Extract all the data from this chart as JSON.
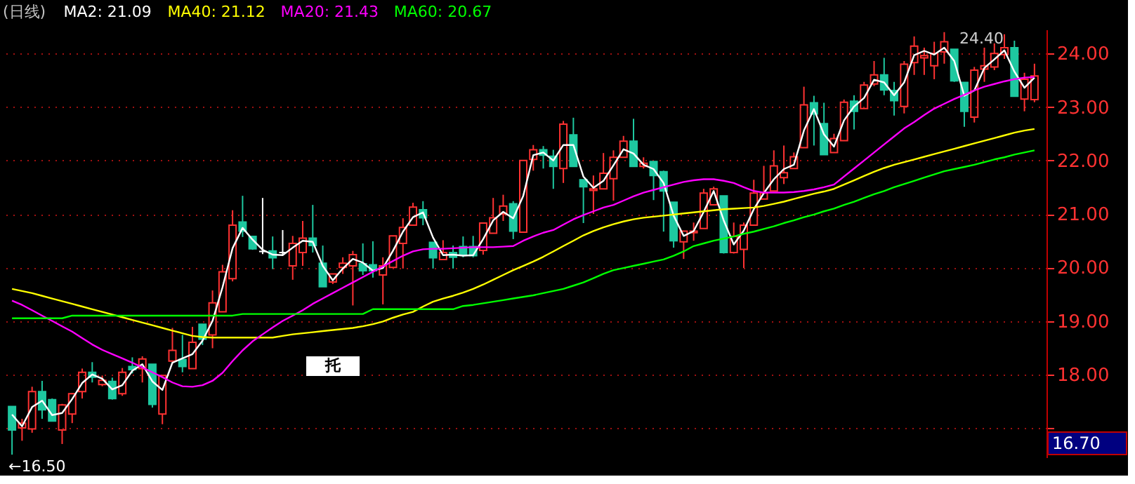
{
  "chart_data": {
    "type": "candlestick",
    "title": "(日线)",
    "categories": [
      null,
      null,
      null,
      null,
      null,
      null,
      null,
      null,
      null,
      null,
      null,
      null,
      null,
      null,
      null,
      null,
      null,
      null,
      null,
      null,
      null,
      null,
      null,
      null,
      null,
      null,
      null,
      null,
      null,
      null,
      null,
      null,
      null,
      null,
      null,
      null,
      null,
      null,
      null,
      null,
      null,
      null,
      null,
      null,
      null,
      null,
      null,
      null,
      null,
      null,
      null,
      null,
      null,
      null,
      null,
      null,
      null,
      null,
      null,
      null,
      null,
      null,
      null,
      null,
      null,
      null,
      null,
      null,
      null,
      null,
      null,
      null,
      null,
      null,
      null,
      null,
      null,
      null,
      null,
      null,
      null,
      null,
      null,
      null,
      null,
      null,
      null,
      null,
      null,
      null,
      null,
      null,
      null,
      null,
      null,
      null,
      null,
      null,
      null,
      null,
      null,
      null,
      null
    ],
    "ohlc": [
      [
        17.4,
        17.4,
        16.5,
        16.96
      ],
      [
        17.0,
        17.17,
        16.76,
        17.09
      ],
      [
        16.98,
        17.77,
        16.91,
        17.68
      ],
      [
        17.68,
        17.88,
        17.17,
        17.34
      ],
      [
        17.53,
        17.55,
        17.12,
        17.13
      ],
      [
        16.96,
        17.45,
        16.7,
        17.43
      ],
      [
        17.26,
        17.65,
        17.09,
        17.64
      ],
      [
        17.68,
        18.11,
        17.55,
        18.04
      ],
      [
        18.04,
        18.23,
        17.85,
        17.95
      ],
      [
        17.81,
        17.98,
        17.78,
        17.89
      ],
      [
        17.87,
        17.94,
        17.53,
        17.55
      ],
      [
        17.64,
        18.12,
        17.6,
        18.04
      ],
      [
        18.15,
        18.32,
        18.02,
        18.09
      ],
      [
        18.11,
        18.34,
        17.85,
        18.29
      ],
      [
        18.19,
        18.19,
        17.38,
        17.44
      ],
      [
        17.26,
        17.98,
        17.07,
        17.98
      ],
      [
        18.25,
        18.87,
        18.25,
        18.45
      ],
      [
        18.28,
        18.74,
        18.04,
        18.15
      ],
      [
        18.11,
        18.89,
        18.11,
        18.6
      ],
      [
        18.94,
        18.94,
        18.55,
        18.66
      ],
      [
        18.74,
        19.57,
        18.49,
        19.34
      ],
      [
        19.17,
        20.05,
        19.17,
        19.92
      ],
      [
        19.79,
        21.07,
        19.74,
        20.79
      ],
      [
        20.85,
        21.34,
        20.57,
        20.68
      ],
      [
        20.58,
        20.58,
        20.33,
        20.35
      ],
      [
        20.3,
        21.3,
        20.25,
        20.3
      ],
      [
        20.31,
        20.58,
        19.97,
        20.18
      ],
      [
        20.28,
        20.7,
        20.24,
        20.28
      ],
      [
        20.03,
        20.59,
        19.77,
        20.45
      ],
      [
        20.28,
        20.87,
        20.03,
        20.55
      ],
      [
        20.55,
        21.17,
        20.28,
        20.41
      ],
      [
        20.08,
        20.41,
        19.64,
        19.64
      ],
      [
        19.73,
        19.88,
        19.69,
        19.88
      ],
      [
        20.0,
        20.19,
        19.88,
        20.08
      ],
      [
        20.03,
        20.31,
        19.29,
        20.24
      ],
      [
        20.07,
        20.45,
        19.86,
        19.94
      ],
      [
        20.05,
        20.49,
        19.81,
        19.94
      ],
      [
        19.86,
        20.19,
        19.31,
        20.03
      ],
      [
        20.0,
        20.59,
        20.0,
        20.59
      ],
      [
        20.45,
        20.92,
        19.98,
        20.75
      ],
      [
        20.79,
        21.21,
        20.79,
        21.13
      ],
      [
        21.08,
        21.24,
        20.79,
        20.93
      ],
      [
        20.47,
        20.47,
        19.98,
        20.18
      ],
      [
        20.15,
        20.51,
        20.15,
        20.28
      ],
      [
        20.28,
        20.41,
        19.98,
        20.19
      ],
      [
        20.39,
        20.58,
        20.19,
        20.24
      ],
      [
        20.39,
        20.59,
        20.19,
        20.22
      ],
      [
        20.32,
        20.83,
        20.24,
        20.83
      ],
      [
        20.64,
        21.3,
        20.64,
        20.93
      ],
      [
        21.0,
        21.36,
        20.87,
        21.15
      ],
      [
        21.19,
        21.24,
        20.53,
        20.68
      ],
      [
        20.66,
        22.0,
        20.66,
        22.0
      ],
      [
        22.02,
        22.29,
        21.81,
        22.2
      ],
      [
        22.2,
        22.27,
        21.85,
        22.1
      ],
      [
        22.08,
        22.2,
        21.47,
        21.89
      ],
      [
        21.85,
        22.74,
        21.58,
        22.68
      ],
      [
        22.48,
        22.8,
        21.89,
        21.89
      ],
      [
        21.64,
        21.64,
        20.83,
        21.51
      ],
      [
        21.44,
        21.72,
        21.0,
        21.47
      ],
      [
        21.47,
        22.14,
        21.47,
        21.76
      ],
      [
        21.66,
        22.19,
        21.25,
        22.06
      ],
      [
        22.06,
        22.46,
        22.06,
        22.36
      ],
      [
        22.36,
        22.78,
        21.89,
        21.89
      ],
      [
        21.89,
        22.06,
        21.85,
        21.95
      ],
      [
        21.98,
        21.98,
        21.26,
        21.72
      ],
      [
        21.79,
        21.81,
        20.67,
        21.43
      ],
      [
        21.22,
        21.22,
        20.37,
        20.5
      ],
      [
        20.48,
        20.68,
        20.16,
        20.68
      ],
      [
        20.65,
        20.84,
        20.5,
        20.68
      ],
      [
        20.73,
        21.47,
        20.73,
        21.39
      ],
      [
        21.17,
        21.51,
        21.16,
        21.47
      ],
      [
        21.34,
        21.34,
        20.26,
        20.28
      ],
      [
        20.28,
        20.84,
        20.26,
        20.58
      ],
      [
        20.34,
        20.84,
        19.99,
        20.79
      ],
      [
        20.79,
        21.64,
        20.79,
        21.39
      ],
      [
        21.28,
        21.9,
        21.28,
        21.39
      ],
      [
        21.43,
        22.19,
        21.43,
        21.9
      ],
      [
        21.68,
        22.28,
        21.56,
        21.77
      ],
      [
        21.85,
        22.15,
        21.85,
        22.07
      ],
      [
        22.24,
        23.38,
        22.24,
        23.04
      ],
      [
        23.08,
        23.21,
        22.28,
        22.87
      ],
      [
        22.69,
        23.08,
        22.11,
        22.11
      ],
      [
        22.15,
        22.5,
        22.15,
        22.41
      ],
      [
        22.37,
        23.14,
        22.37,
        23.09
      ],
      [
        23.11,
        23.22,
        22.58,
        22.92
      ],
      [
        22.97,
        23.47,
        22.97,
        23.41
      ],
      [
        23.43,
        23.86,
        23.39,
        23.6
      ],
      [
        23.6,
        23.92,
        23.22,
        23.32
      ],
      [
        23.31,
        23.47,
        22.84,
        23.12
      ],
      [
        23.01,
        23.86,
        22.88,
        23.8
      ],
      [
        23.83,
        24.32,
        23.6,
        24.14
      ],
      [
        23.92,
        24.11,
        23.6,
        23.96
      ],
      [
        23.77,
        24.22,
        23.52,
        24.0
      ],
      [
        24.03,
        24.4,
        23.81,
        24.22
      ],
      [
        24.08,
        24.08,
        23.47,
        23.49
      ],
      [
        23.46,
        23.46,
        22.63,
        22.92
      ],
      [
        22.81,
        23.75,
        22.71,
        23.69
      ],
      [
        23.71,
        24.11,
        23.47,
        23.77
      ],
      [
        23.75,
        24.19,
        23.69,
        24.0
      ],
      [
        23.98,
        24.36,
        23.9,
        24.11
      ],
      [
        24.11,
        24.24,
        23.2,
        23.2
      ],
      [
        23.15,
        23.64,
        22.92,
        23.52
      ],
      [
        23.14,
        23.81,
        23.09,
        23.58
      ]
    ],
    "colors": [
      "#1ec8a0",
      "#ff3232",
      "#ff3232",
      "#1ec8a0",
      "#1ec8a0",
      "#ff3232",
      "#ff3232",
      "#ff3232",
      "#1ec8a0",
      "#ff3232",
      "#1ec8a0",
      "#ff3232",
      "#1ec8a0",
      "#ff3232",
      "#1ec8a0",
      "#ff3232",
      "#ff3232",
      "#1ec8a0",
      "#ff3232",
      "#1ec8a0",
      "#ff3232",
      "#ff3232",
      "#ff3232",
      "#1ec8a0",
      "#1ec8a0",
      "#ffffff",
      "#1ec8a0",
      "#ffffff",
      "#ff3232",
      "#ff3232",
      "#1ec8a0",
      "#1ec8a0",
      "#ff3232",
      "#ff3232",
      "#ff3232",
      "#1ec8a0",
      "#1ec8a0",
      "#ff3232",
      "#ff3232",
      "#ff3232",
      "#ff3232",
      "#1ec8a0",
      "#1ec8a0",
      "#ff3232",
      "#1ec8a0",
      "#1ec8a0",
      "#1ec8a0",
      "#ff3232",
      "#ff3232",
      "#ff3232",
      "#1ec8a0",
      "#ff3232",
      "#ff3232",
      "#1ec8a0",
      "#1ec8a0",
      "#ff3232",
      "#1ec8a0",
      "#1ec8a0",
      "#ff3232",
      "#ff3232",
      "#ff3232",
      "#ff3232",
      "#1ec8a0",
      "#ff3232",
      "#1ec8a0",
      "#1ec8a0",
      "#1ec8a0",
      "#ff3232",
      "#ff3232",
      "#ff3232",
      "#ff3232",
      "#1ec8a0",
      "#ff3232",
      "#ff3232",
      "#ff3232",
      "#ff3232",
      "#ff3232",
      "#ff3232",
      "#ff3232",
      "#ff3232",
      "#1ec8a0",
      "#1ec8a0",
      "#ff3232",
      "#ff3232",
      "#1ec8a0",
      "#ff3232",
      "#ff3232",
      "#1ec8a0",
      "#1ec8a0",
      "#ff3232",
      "#ff3232",
      "#ff3232",
      "#ff3232",
      "#ff3232",
      "#1ec8a0",
      "#1ec8a0",
      "#ff3232",
      "#ff3232",
      "#ff3232",
      "#ff3232",
      "#1ec8a0",
      "#ff3232",
      "#ff3232"
    ],
    "series": [
      {
        "name": "MA2: 21.09",
        "type": "line",
        "color": "#ffffff",
        "values": [
          17.25,
          17.03,
          17.39,
          17.51,
          17.24,
          17.28,
          17.54,
          17.84,
          18.0,
          17.92,
          17.72,
          17.8,
          18.07,
          18.19,
          17.87,
          17.71,
          18.22,
          18.3,
          18.38,
          18.63,
          19.0,
          19.63,
          20.36,
          20.74,
          20.52,
          20.33,
          20.24,
          20.23,
          20.37,
          20.5,
          20.48,
          20.03,
          19.76,
          19.98,
          20.16,
          20.09,
          19.94,
          19.99,
          20.31,
          20.67,
          20.94,
          21.03,
          20.56,
          20.23,
          20.24,
          20.22,
          20.23,
          20.53,
          20.88,
          21.04,
          20.92,
          21.34,
          22.1,
          22.15,
          22.0,
          22.29,
          22.29,
          21.7,
          21.49,
          21.62,
          21.91,
          22.21,
          22.13,
          21.92,
          21.84,
          21.58,
          20.97,
          20.59,
          20.68,
          21.04,
          21.43,
          20.88,
          20.43,
          20.69,
          21.09,
          21.39,
          21.65,
          21.84,
          21.92,
          22.56,
          22.96,
          22.49,
          22.26,
          22.75,
          23.01,
          23.17,
          23.51,
          23.46,
          23.22,
          23.46,
          23.97,
          24.05,
          23.98,
          24.11,
          23.86,
          23.21,
          23.31,
          23.73,
          23.89,
          24.06,
          23.66,
          23.36,
          23.55
        ]
      },
      {
        "name": "MA40: 21.12",
        "type": "line",
        "color": "#ffff00",
        "values": [
          19.6,
          19.56,
          19.52,
          19.47,
          19.42,
          19.37,
          19.32,
          19.27,
          19.22,
          19.17,
          19.12,
          19.07,
          19.02,
          18.97,
          18.92,
          18.87,
          18.82,
          18.77,
          18.72,
          18.7,
          18.69,
          18.69,
          18.69,
          18.69,
          18.69,
          18.69,
          18.69,
          18.72,
          18.75,
          18.77,
          18.79,
          18.81,
          18.83,
          18.85,
          18.87,
          18.9,
          18.94,
          18.99,
          19.06,
          19.12,
          19.17,
          19.27,
          19.36,
          19.42,
          19.47,
          19.53,
          19.6,
          19.68,
          19.77,
          19.86,
          19.95,
          20.03,
          20.11,
          20.2,
          20.3,
          20.4,
          20.5,
          20.6,
          20.68,
          20.75,
          20.81,
          20.86,
          20.9,
          20.93,
          20.95,
          20.97,
          20.99,
          21.01,
          21.03,
          21.05,
          21.07,
          21.09,
          21.1,
          21.11,
          21.12,
          21.15,
          21.19,
          21.23,
          21.28,
          21.33,
          21.38,
          21.42,
          21.47,
          21.55,
          21.63,
          21.71,
          21.79,
          21.86,
          21.92,
          21.97,
          22.02,
          22.07,
          22.12,
          22.17,
          22.22,
          22.27,
          22.32,
          22.37,
          22.42,
          22.47,
          22.52,
          22.56,
          22.59
        ]
      },
      {
        "name": "MA20: 21.43",
        "type": "line",
        "color": "#ff00ff",
        "values": [
          19.38,
          19.3,
          19.2,
          19.1,
          19.0,
          18.9,
          18.8,
          18.68,
          18.56,
          18.46,
          18.38,
          18.3,
          18.22,
          18.13,
          18.04,
          17.95,
          17.85,
          17.78,
          17.77,
          17.8,
          17.88,
          18.03,
          18.25,
          18.45,
          18.62,
          18.75,
          18.88,
          19.0,
          19.1,
          19.2,
          19.32,
          19.42,
          19.52,
          19.62,
          19.72,
          19.82,
          19.92,
          20.02,
          20.12,
          20.22,
          20.3,
          20.34,
          20.35,
          20.35,
          20.36,
          20.37,
          20.38,
          20.38,
          20.38,
          20.39,
          20.4,
          20.5,
          20.58,
          20.65,
          20.7,
          20.8,
          20.9,
          20.98,
          21.05,
          21.12,
          21.17,
          21.25,
          21.33,
          21.4,
          21.45,
          21.5,
          21.55,
          21.6,
          21.63,
          21.65,
          21.65,
          21.62,
          21.58,
          21.5,
          21.43,
          21.4,
          21.4,
          21.4,
          21.41,
          21.43,
          21.46,
          21.5,
          21.55,
          21.7,
          21.85,
          22.0,
          22.15,
          22.3,
          22.45,
          22.6,
          22.72,
          22.85,
          22.97,
          23.06,
          23.15,
          23.23,
          23.31,
          23.38,
          23.43,
          23.48,
          23.52,
          23.55,
          23.56
        ]
      },
      {
        "name": "MA60: 20.67",
        "type": "line",
        "color": "#00ff00",
        "values": [
          19.05,
          19.05,
          19.05,
          19.05,
          19.05,
          19.05,
          19.1,
          19.1,
          19.1,
          19.1,
          19.1,
          19.1,
          19.1,
          19.1,
          19.1,
          19.1,
          19.1,
          19.1,
          19.1,
          19.1,
          19.1,
          19.1,
          19.1,
          19.13,
          19.13,
          19.13,
          19.13,
          19.13,
          19.13,
          19.13,
          19.13,
          19.13,
          19.13,
          19.13,
          19.13,
          19.13,
          19.22,
          19.22,
          19.22,
          19.22,
          19.22,
          19.22,
          19.22,
          19.22,
          19.22,
          19.28,
          19.3,
          19.33,
          19.36,
          19.39,
          19.42,
          19.45,
          19.48,
          19.52,
          19.56,
          19.6,
          19.66,
          19.72,
          19.8,
          19.88,
          19.95,
          19.99,
          20.03,
          20.07,
          20.11,
          20.15,
          20.22,
          20.3,
          20.4,
          20.45,
          20.5,
          20.54,
          20.58,
          20.63,
          20.67,
          20.72,
          20.77,
          20.83,
          20.88,
          20.94,
          20.99,
          21.05,
          21.1,
          21.17,
          21.23,
          21.3,
          21.37,
          21.43,
          21.5,
          21.56,
          21.62,
          21.68,
          21.74,
          21.8,
          21.84,
          21.88,
          21.92,
          21.97,
          22.02,
          22.06,
          22.11,
          22.15,
          22.19
        ]
      }
    ],
    "ylim": [
      16.45,
      24.45
    ],
    "yticks": [
      {
        "value": 17,
        "label": null
      },
      {
        "value": 18,
        "label": "18.00"
      },
      {
        "value": 19,
        "label": "19.00"
      },
      {
        "value": 20,
        "label": "20.00"
      },
      {
        "value": 21,
        "label": "21.00"
      },
      {
        "value": 22,
        "label": "22.00"
      },
      {
        "value": 23,
        "label": "23.00"
      },
      {
        "value": 24,
        "label": "24.00"
      }
    ],
    "grid": "y",
    "legend": "top left",
    "tick_labels": "y",
    "annotations": [
      "←16.50",
      "24.40",
      "16.70",
      "托"
    ]
  }
}
